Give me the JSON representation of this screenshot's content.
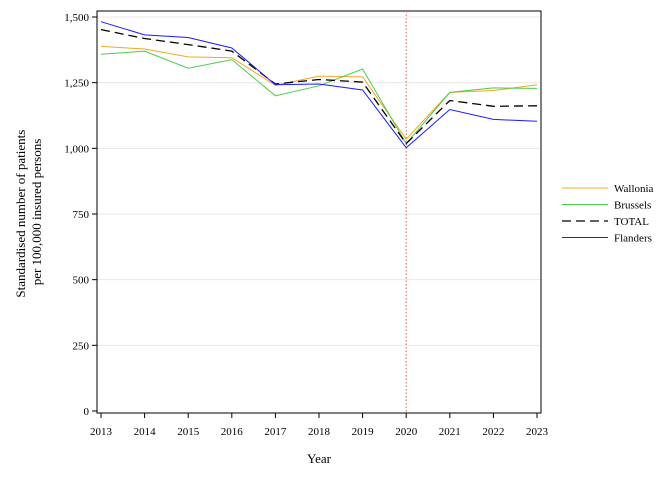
{
  "chart_data": {
    "type": "line",
    "title": "",
    "xlabel": "Year",
    "ylabel_lines": [
      "Standardised number of patients",
      "per 100,000 insured persons"
    ],
    "x": [
      2013,
      2014,
      2015,
      2016,
      2017,
      2018,
      2019,
      2020,
      2021,
      2022,
      2023
    ],
    "x_tick_labels": [
      "2013",
      "2014",
      "2015",
      "2016",
      "2017",
      "2018",
      "2019",
      "2020",
      "2021",
      "2022",
      "2023"
    ],
    "ylim": [
      0,
      1500
    ],
    "y_ticks": [
      0,
      250,
      500,
      750,
      1000,
      1250,
      1500
    ],
    "y_tick_labels": [
      "0",
      "250",
      "500",
      "750",
      "1,000",
      "1,250",
      "1,500"
    ],
    "grid": "horizontal",
    "reference_line": {
      "x": 2020,
      "color": "#e06060",
      "style": "dotted"
    },
    "legend_position": "right",
    "series": [
      {
        "name": "Wallonia",
        "color": "#f5a623",
        "dash": "solid",
        "values": [
          1388,
          1378,
          1348,
          1345,
          1240,
          1275,
          1272,
          1035,
          1213,
          1220,
          1242
        ]
      },
      {
        "name": "Brussels",
        "color": "#4ccc4c",
        "dash": "solid",
        "values": [
          1358,
          1370,
          1305,
          1338,
          1200,
          1238,
          1302,
          1018,
          1213,
          1230,
          1228
        ]
      },
      {
        "name": "TOTAL",
        "color": "#000000",
        "dash": "dashed",
        "values": [
          1452,
          1418,
          1395,
          1370,
          1245,
          1262,
          1252,
          1018,
          1182,
          1160,
          1162
        ]
      },
      {
        "name": "Flanders",
        "color": "#1a1aff",
        "dash": "solid",
        "values": [
          1482,
          1432,
          1422,
          1382,
          1242,
          1245,
          1222,
          1002,
          1148,
          1110,
          1103
        ]
      }
    ]
  }
}
